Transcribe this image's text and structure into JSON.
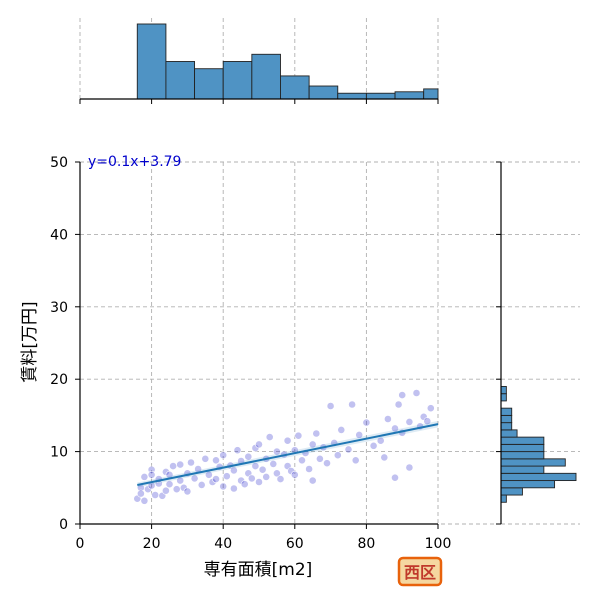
{
  "chart_data": {
    "type": "scatter",
    "title": "",
    "xlabel": "専有面積[m2]",
    "ylabel": "賃料[万円]",
    "xlim": [
      0,
      100
    ],
    "ylim": [
      0,
      50
    ],
    "x_ticks": [
      0,
      20,
      40,
      60,
      80,
      100
    ],
    "y_ticks": [
      0,
      10,
      20,
      30,
      40,
      50
    ],
    "grid": true,
    "regression": {
      "label": "y=0.1x+3.79",
      "slope": 0.1,
      "intercept": 3.79,
      "x_range": [
        16,
        100
      ],
      "color": "#1f77b4"
    },
    "point_color": "#3333cc",
    "bar_color": "#4f93c4",
    "equation_color": "#0000cc",
    "badge": {
      "text": "西区",
      "fill": "#f5d7a0",
      "stroke": "#e8620c",
      "text_color": "#c0392b"
    },
    "x_marginal_histogram": {
      "bin_edges": [
        16,
        24,
        32,
        40,
        48,
        56,
        64,
        72,
        80,
        88,
        96,
        104
      ],
      "counts": [
        52,
        26,
        21,
        26,
        31,
        16,
        9,
        4,
        4,
        5,
        7
      ]
    },
    "y_marginal_histogram": {
      "bin_edges": [
        3,
        4,
        5,
        6,
        7,
        8,
        9,
        10,
        11,
        12,
        13,
        14,
        15,
        16,
        17,
        18,
        19
      ],
      "counts": [
        1,
        4,
        10,
        14,
        8,
        12,
        8,
        8,
        8,
        3,
        2,
        2,
        2,
        0,
        1,
        1
      ]
    },
    "points": [
      [
        16,
        3.5
      ],
      [
        17,
        5.0
      ],
      [
        17,
        4.2
      ],
      [
        18,
        6.5
      ],
      [
        18,
        3.2
      ],
      [
        19,
        4.8
      ],
      [
        20,
        7.5
      ],
      [
        20,
        5.3
      ],
      [
        20,
        6.8
      ],
      [
        21,
        4.0
      ],
      [
        22,
        5.6
      ],
      [
        22,
        6.2
      ],
      [
        23,
        3.9
      ],
      [
        24,
        7.2
      ],
      [
        24,
        4.6
      ],
      [
        25,
        5.5
      ],
      [
        25,
        6.8
      ],
      [
        26,
        8.0
      ],
      [
        27,
        4.8
      ],
      [
        28,
        6.0
      ],
      [
        28,
        8.2
      ],
      [
        29,
        5.0
      ],
      [
        30,
        7.0
      ],
      [
        30,
        4.5
      ],
      [
        31,
        8.5
      ],
      [
        32,
        6.3
      ],
      [
        33,
        7.6
      ],
      [
        34,
        5.4
      ],
      [
        35,
        9.0
      ],
      [
        36,
        6.8
      ],
      [
        37,
        5.8
      ],
      [
        38,
        8.8
      ],
      [
        38,
        6.2
      ],
      [
        39,
        7.9
      ],
      [
        40,
        5.2
      ],
      [
        40,
        9.5
      ],
      [
        41,
        6.6
      ],
      [
        42,
        8.1
      ],
      [
        43,
        4.9
      ],
      [
        43,
        7.4
      ],
      [
        44,
        10.2
      ],
      [
        45,
        6.0
      ],
      [
        45,
        8.7
      ],
      [
        46,
        5.5
      ],
      [
        47,
        9.3
      ],
      [
        47,
        7.0
      ],
      [
        48,
        6.3
      ],
      [
        49,
        10.5
      ],
      [
        49,
        8.0
      ],
      [
        50,
        5.8
      ],
      [
        50,
        11.0
      ],
      [
        51,
        7.5
      ],
      [
        52,
        9.0
      ],
      [
        52,
        6.5
      ],
      [
        53,
        12.0
      ],
      [
        54,
        8.3
      ],
      [
        55,
        7.0
      ],
      [
        55,
        10.0
      ],
      [
        56,
        6.2
      ],
      [
        57,
        9.6
      ],
      [
        58,
        8.0
      ],
      [
        58,
        11.5
      ],
      [
        59,
        7.3
      ],
      [
        60,
        10.2
      ],
      [
        60,
        6.8
      ],
      [
        61,
        12.2
      ],
      [
        62,
        8.8
      ],
      [
        63,
        9.8
      ],
      [
        64,
        7.6
      ],
      [
        65,
        11.0
      ],
      [
        65,
        6.0
      ],
      [
        66,
        12.5
      ],
      [
        67,
        9.0
      ],
      [
        68,
        10.6
      ],
      [
        69,
        8.4
      ],
      [
        70,
        16.3
      ],
      [
        71,
        11.2
      ],
      [
        72,
        9.5
      ],
      [
        73,
        13.0
      ],
      [
        75,
        10.3
      ],
      [
        76,
        16.5
      ],
      [
        77,
        8.8
      ],
      [
        78,
        12.3
      ],
      [
        80,
        14.0
      ],
      [
        82,
        10.8
      ],
      [
        84,
        11.5
      ],
      [
        86,
        14.5
      ],
      [
        88,
        13.2
      ],
      [
        89,
        16.5
      ],
      [
        90,
        17.8
      ],
      [
        90,
        12.6
      ],
      [
        92,
        14.1
      ],
      [
        94,
        18.1
      ],
      [
        95,
        13.5
      ],
      [
        96,
        14.8
      ],
      [
        97,
        14.2
      ],
      [
        98,
        16.0
      ],
      [
        88,
        6.4
      ],
      [
        92,
        7.8
      ],
      [
        85,
        9.2
      ]
    ]
  }
}
